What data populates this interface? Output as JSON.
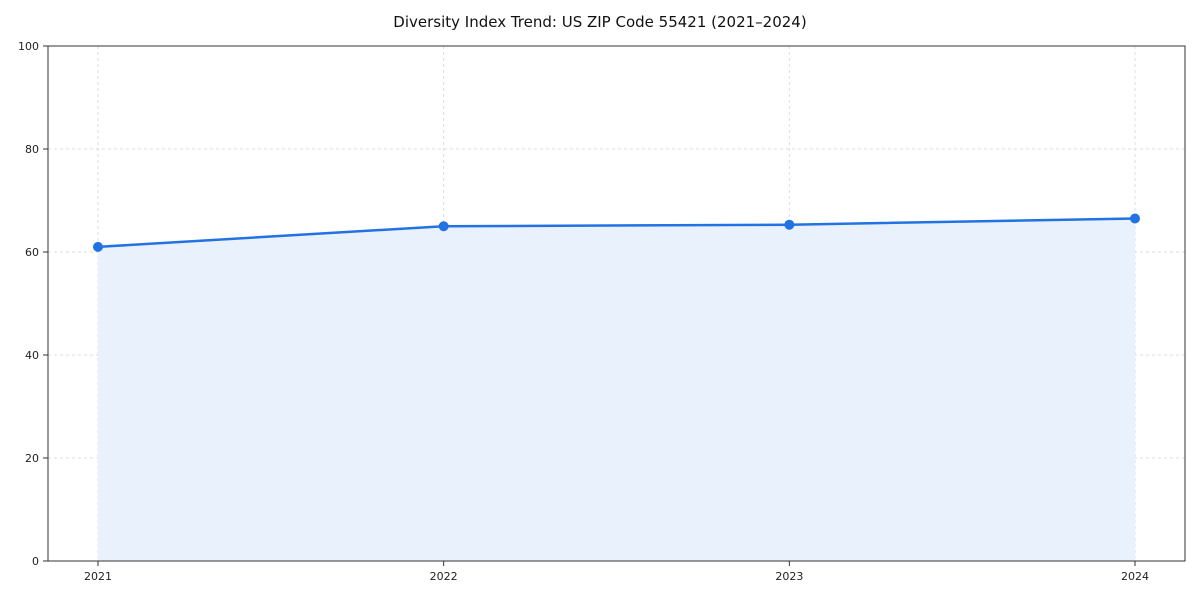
{
  "chart_data": {
    "type": "area",
    "title": "Diversity Index Trend: US ZIP Code 55421 (2021–2024)",
    "x": [
      2021,
      2022,
      2023,
      2024
    ],
    "series": [
      {
        "name": "Diversity Index",
        "values": [
          61,
          65,
          65.3,
          66.5
        ]
      }
    ],
    "ylim": [
      0,
      100
    ],
    "yticks": [
      0,
      20,
      40,
      60,
      80,
      100
    ],
    "grid": true,
    "legend": "none",
    "line_color": "#2272e3",
    "marker_color": "#2272e3",
    "fill_color": "#e9f1fd",
    "grid_color": "#dddddd",
    "axis_color": "#333333",
    "tick_label_color": "#222222"
  }
}
